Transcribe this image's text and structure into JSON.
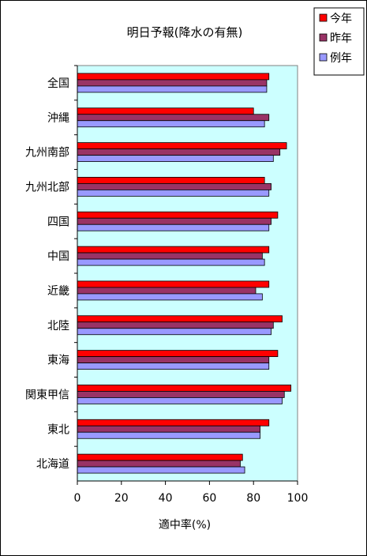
{
  "chart_data": {
    "type": "bar",
    "orientation": "horizontal",
    "title": "明日予報(降水の有無)",
    "xlabel": "適中率(%)",
    "ylabel": "",
    "xlim": [
      0,
      100
    ],
    "xticks": [
      "0",
      "20",
      "40",
      "60",
      "80",
      "100"
    ],
    "categories": [
      "全国",
      "沖縄",
      "九州南部",
      "九州北部",
      "四国",
      "中国",
      "近畿",
      "北陸",
      "東海",
      "関東甲信",
      "東北",
      "北海道"
    ],
    "series": [
      {
        "name": "今年",
        "color": "#ff0000",
        "values": [
          87,
          80,
          95,
          85,
          91,
          87,
          87,
          93,
          91,
          97,
          87,
          75
        ]
      },
      {
        "name": "昨年",
        "color": "#993366",
        "values": [
          86,
          87,
          92,
          88,
          88,
          84,
          81,
          89,
          87,
          94,
          83,
          74
        ]
      },
      {
        "name": "例年",
        "color": "#9999ff",
        "values": [
          86,
          85,
          89,
          87,
          87,
          85,
          84,
          88,
          87,
          93,
          83,
          76
        ]
      }
    ],
    "legend_position": "top-right",
    "plot_background": "#ccffff",
    "grid": false
  }
}
